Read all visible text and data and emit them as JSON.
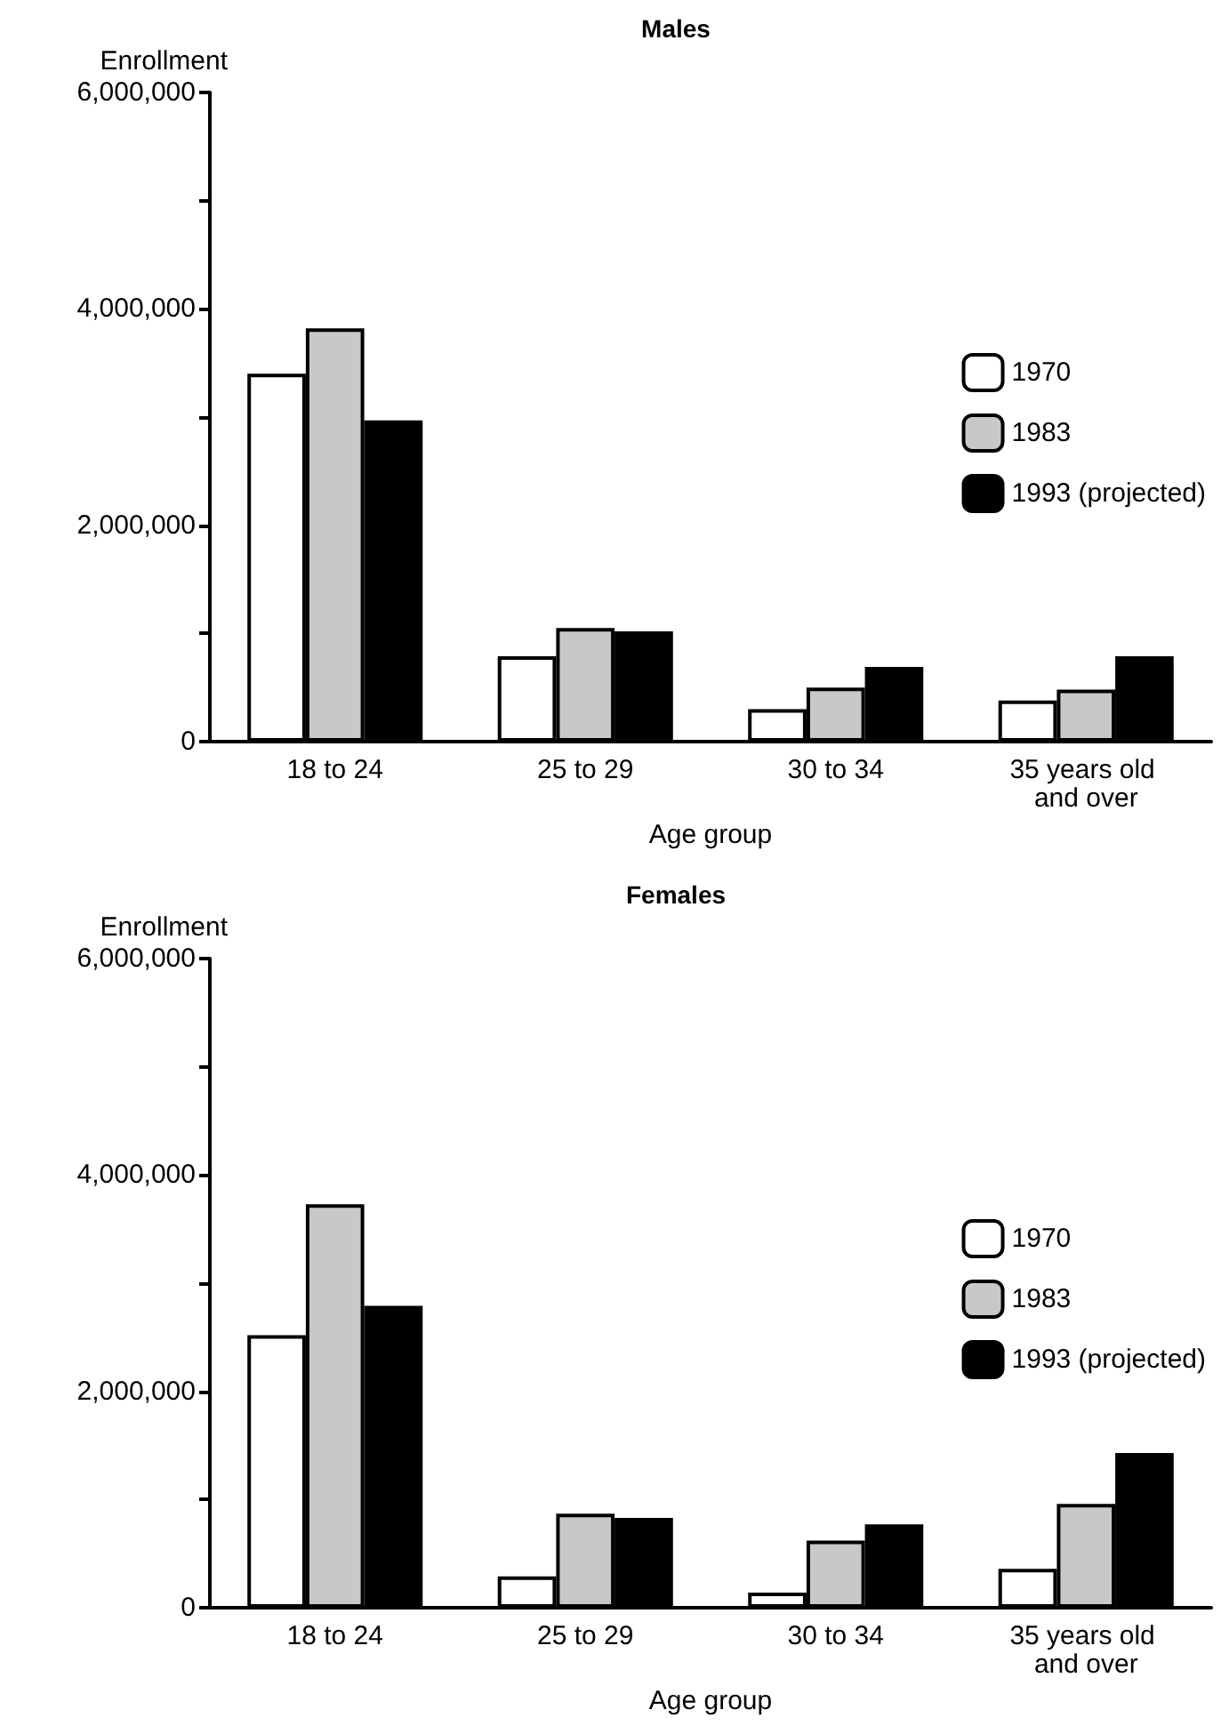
{
  "chart_data": [
    {
      "type": "bar",
      "title": "Males",
      "xlabel": "Age group",
      "ylabel": "Enrollment",
      "categories": [
        "18 to 24",
        "25 to 29",
        "30 to 34",
        "35 years old and over"
      ],
      "series": [
        {
          "name": "1970",
          "color": "#ffffff",
          "values": [
            3400000,
            790000,
            300000,
            380000
          ]
        },
        {
          "name": "1983",
          "color": "#c8c8c8",
          "values": [
            3820000,
            1050000,
            500000,
            480000
          ]
        },
        {
          "name": "1993 (projected)",
          "color": "#000000",
          "values": [
            2970000,
            1020000,
            690000,
            790000
          ]
        }
      ],
      "ylim": [
        0,
        6000000
      ],
      "yticks": [
        0,
        {
          "value": 1000000,
          "label": null
        },
        {
          "value": 2000000,
          "label": "2,000,000"
        },
        {
          "value": 3000000,
          "label": null
        },
        {
          "value": 4000000,
          "label": "4,000,000"
        },
        {
          "value": 5000000,
          "label": null
        },
        {
          "value": 6000000,
          "label": "6,000,000"
        }
      ],
      "legend": "right",
      "grid": false
    },
    {
      "type": "bar",
      "title": "Females",
      "xlabel": "Age group",
      "ylabel": "Enrollment",
      "categories": [
        "18 to 24",
        "25 to 29",
        "30 to 34",
        "35 years old and over"
      ],
      "series": [
        {
          "name": "1970",
          "color": "#ffffff",
          "values": [
            2520000,
            290000,
            140000,
            360000
          ]
        },
        {
          "name": "1983",
          "color": "#c8c8c8",
          "values": [
            3730000,
            870000,
            620000,
            960000
          ]
        },
        {
          "name": "1993 (projected)",
          "color": "#000000",
          "values": [
            2790000,
            830000,
            770000,
            1430000
          ]
        }
      ],
      "ylim": [
        0,
        6000000
      ],
      "yticks": [
        0,
        {
          "value": 1000000,
          "label": null
        },
        {
          "value": 2000000,
          "label": "2,000,000"
        },
        {
          "value": 3000000,
          "label": null
        },
        {
          "value": 4000000,
          "label": "4,000,000"
        },
        {
          "value": 5000000,
          "label": null
        },
        {
          "value": 6000000,
          "label": "6,000,000"
        }
      ],
      "legend": "right",
      "grid": false
    }
  ]
}
